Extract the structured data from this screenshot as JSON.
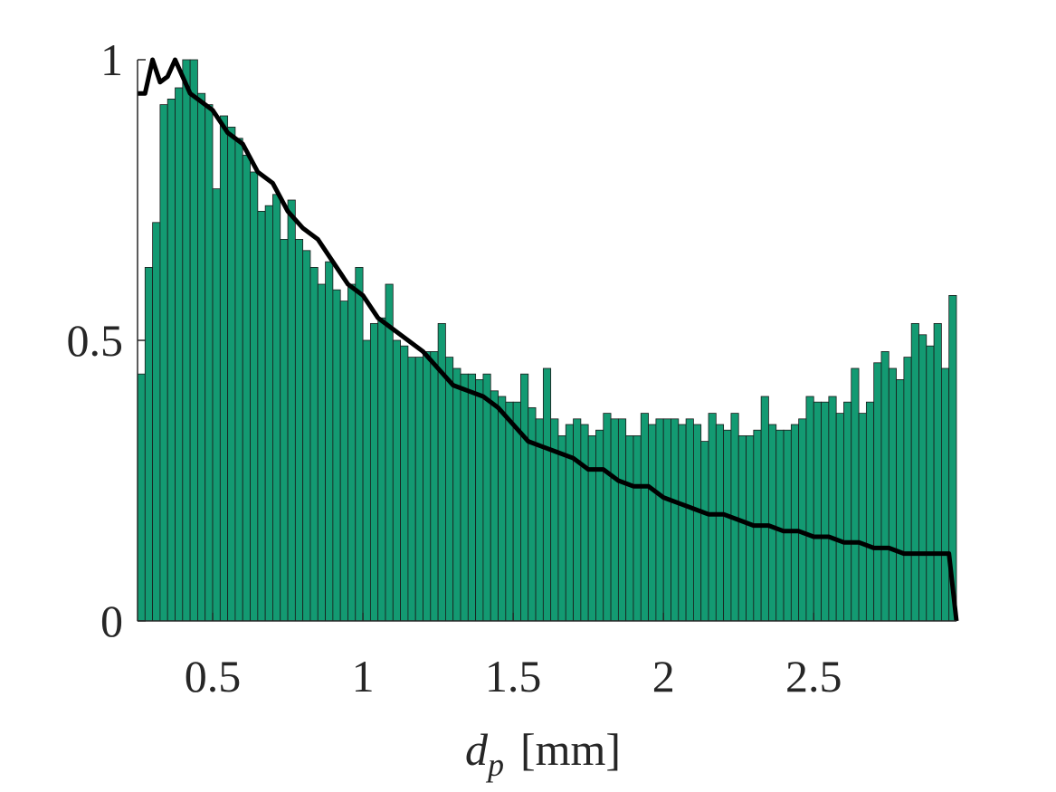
{
  "chart_data": {
    "type": "histogram",
    "xlabel": "d",
    "xlabel_subscript": "p",
    "xlabel_unit": "[mm]",
    "color": "#139a72",
    "bins": [
      0.25,
      0.275,
      0.3,
      0.325,
      0.35,
      0.375,
      0.4,
      0.425,
      0.45,
      0.475,
      0.5,
      0.525,
      0.55,
      0.575,
      0.6,
      0.625,
      0.65,
      0.675,
      0.7,
      0.725,
      0.75,
      0.775,
      0.8,
      0.825,
      0.85,
      0.875,
      0.9,
      0.925,
      0.95,
      0.975,
      1.0,
      1.025,
      1.05,
      1.075,
      1.1,
      1.125,
      1.15,
      1.175,
      1.2,
      1.225,
      1.25,
      1.275,
      1.3,
      1.325,
      1.35,
      1.375,
      1.4,
      1.425,
      1.45,
      1.475,
      1.5,
      1.525,
      1.55,
      1.575,
      1.6,
      1.625,
      1.65,
      1.675,
      1.7,
      1.725,
      1.75,
      1.775,
      1.8,
      1.825,
      1.85,
      1.875,
      1.9,
      1.925,
      1.95,
      1.975,
      2.0,
      2.025,
      2.05,
      2.075,
      2.1,
      2.125,
      2.15,
      2.175,
      2.2,
      2.225,
      2.25,
      2.275,
      2.3,
      2.325,
      2.35,
      2.375,
      2.4,
      2.425,
      2.45,
      2.475,
      2.5,
      2.525,
      2.55,
      2.575,
      2.6,
      2.625,
      2.65,
      2.675,
      2.7,
      2.725,
      2.75,
      2.775,
      2.8,
      2.825,
      2.85,
      2.875,
      2.9,
      2.925,
      2.95,
      2.975
    ],
    "values": [
      0.44,
      0.63,
      0.71,
      0.92,
      0.93,
      0.95,
      1.0,
      1.0,
      0.94,
      0.92,
      0.77,
      0.9,
      0.88,
      0.86,
      0.83,
      0.8,
      0.73,
      0.74,
      0.76,
      0.68,
      0.75,
      0.68,
      0.66,
      0.63,
      0.6,
      0.64,
      0.59,
      0.57,
      0.6,
      0.63,
      0.5,
      0.53,
      0.54,
      0.6,
      0.5,
      0.49,
      0.47,
      0.47,
      0.48,
      0.48,
      0.53,
      0.47,
      0.45,
      0.44,
      0.44,
      0.43,
      0.44,
      0.41,
      0.4,
      0.39,
      0.39,
      0.44,
      0.38,
      0.36,
      0.45,
      0.36,
      0.33,
      0.35,
      0.36,
      0.35,
      0.33,
      0.34,
      0.37,
      0.36,
      0.36,
      0.33,
      0.33,
      0.37,
      0.35,
      0.36,
      0.36,
      0.36,
      0.35,
      0.36,
      0.35,
      0.32,
      0.37,
      0.35,
      0.34,
      0.37,
      0.33,
      0.33,
      0.34,
      0.4,
      0.35,
      0.34,
      0.34,
      0.35,
      0.36,
      0.4,
      0.39,
      0.39,
      0.4,
      0.37,
      0.39,
      0.45,
      0.37,
      0.39,
      0.46,
      0.48,
      0.45,
      0.43,
      0.47,
      0.53,
      0.51,
      0.49,
      0.53,
      0.45,
      0.58
    ],
    "line": {
      "type": "line",
      "color": "#000000",
      "x": [
        0.25,
        0.275,
        0.3,
        0.325,
        0.35,
        0.375,
        0.4,
        0.425,
        0.45,
        0.5,
        0.55,
        0.6,
        0.65,
        0.7,
        0.75,
        0.8,
        0.85,
        0.9,
        0.95,
        1.0,
        1.05,
        1.1,
        1.15,
        1.2,
        1.25,
        1.3,
        1.35,
        1.4,
        1.45,
        1.5,
        1.55,
        1.6,
        1.65,
        1.7,
        1.75,
        1.8,
        1.85,
        1.9,
        1.95,
        2.0,
        2.05,
        2.1,
        2.15,
        2.2,
        2.25,
        2.3,
        2.35,
        2.4,
        2.45,
        2.5,
        2.55,
        2.6,
        2.65,
        2.7,
        2.75,
        2.8,
        2.85,
        2.9,
        2.95,
        2.975
      ],
      "values": [
        0.94,
        0.94,
        1.0,
        0.96,
        0.97,
        1.0,
        0.97,
        0.94,
        0.93,
        0.91,
        0.87,
        0.85,
        0.8,
        0.78,
        0.73,
        0.7,
        0.68,
        0.64,
        0.6,
        0.58,
        0.54,
        0.52,
        0.5,
        0.48,
        0.45,
        0.42,
        0.41,
        0.4,
        0.38,
        0.35,
        0.32,
        0.31,
        0.3,
        0.29,
        0.27,
        0.27,
        0.25,
        0.24,
        0.24,
        0.22,
        0.21,
        0.2,
        0.19,
        0.19,
        0.18,
        0.17,
        0.17,
        0.16,
        0.16,
        0.15,
        0.15,
        0.14,
        0.14,
        0.13,
        0.13,
        0.12,
        0.12,
        0.12,
        0.12,
        0.0
      ]
    },
    "xlim": [
      0.25,
      2.975
    ],
    "ylim": [
      0,
      1
    ],
    "xticks": [
      0.5,
      1,
      1.5,
      2,
      2.5
    ],
    "yticks": [
      0,
      0.5,
      1
    ]
  }
}
